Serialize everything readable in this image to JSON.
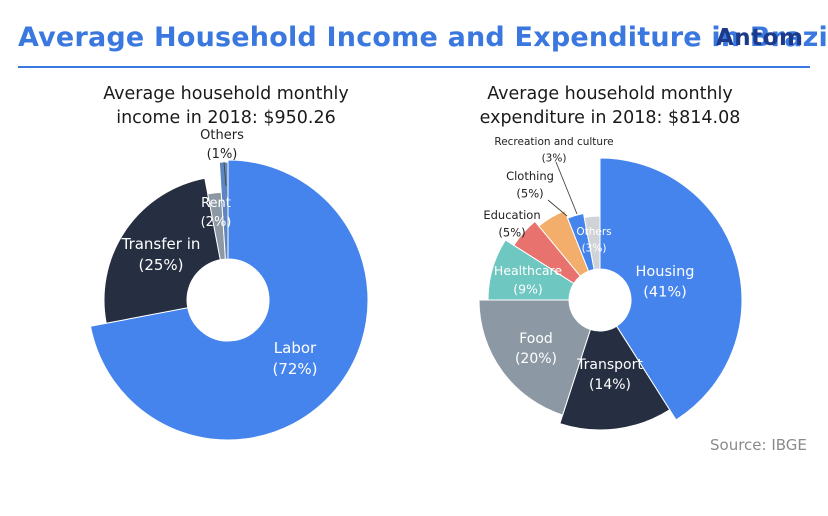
{
  "header": {
    "title": "Average Household Income and Expenditure in Brazil",
    "logo": "Antom"
  },
  "colors": {
    "accent": "#3a78e0",
    "logo": "#1b3a8a"
  },
  "chart_data": [
    {
      "type": "pie",
      "title_line1": "Average household monthly",
      "title_line2": "income in 2018: $950.26",
      "labels": [
        "Labor",
        "Transfer in",
        "Rent",
        "Others"
      ],
      "values": [
        72,
        25,
        2,
        1
      ],
      "value_labels": [
        "(72%)",
        "(25%)",
        "(2%)",
        "(1%)"
      ],
      "colors": [
        "#4584ec",
        "#262f41",
        "#8c98a4",
        "#5d86c0"
      ]
    },
    {
      "type": "pie",
      "title_line1": "Average household monthly",
      "title_line2": "expenditure in 2018: $814.08",
      "labels": [
        "Housing",
        "Transport",
        "Food",
        "Healthcare",
        "Education",
        "Clothing",
        "Recreation and culture",
        "Others"
      ],
      "values": [
        41,
        14,
        20,
        9,
        5,
        5,
        3,
        3
      ],
      "value_labels": [
        "(41%)",
        "(14%)",
        "(20%)",
        "(9%)",
        "(5%)",
        "(5%)",
        "(3%)",
        "(3%)"
      ],
      "colors": [
        "#4584ec",
        "#262f41",
        "#8c98a4",
        "#6fc7c2",
        "#e7726e",
        "#f3ae6b",
        "#4584ec",
        "#cfd2d7"
      ]
    }
  ],
  "source": "Source: IBGE"
}
